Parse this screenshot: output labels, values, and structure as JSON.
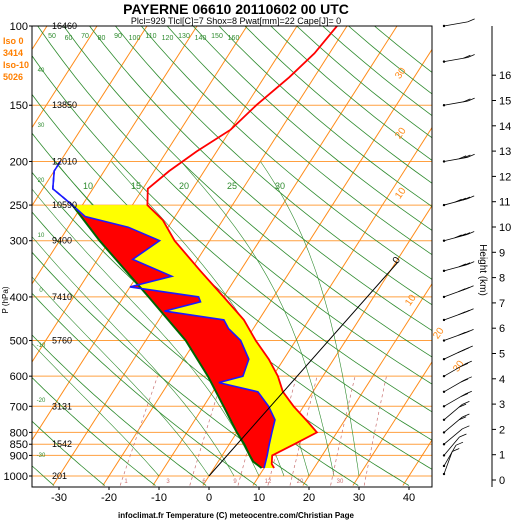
{
  "title": "PAYERNE 06610 20110602 00 UTC",
  "subtitle": "Plcl=929 Tlcl[C]=7 Shox=8 Pwat[mm]=22 Cape[J]= 0",
  "footer": "infoclimat.fr Temperature (C) meteocentre.com/Christian Page",
  "side_info": [
    {
      "text": "Iso 0",
      "color": "#ff7f00"
    },
    {
      "text": "3414",
      "color": "#ff7f00"
    },
    {
      "text": "Iso-10",
      "color": "#ff7f00"
    },
    {
      "text": "5026",
      "color": "#ff7f00"
    }
  ],
  "colors": {
    "isobar": "#ffa040",
    "isotherm": "#ff8c1a",
    "dry_adiabat": "#2e8b2e",
    "moist_adiabat": "#2e8b2e",
    "mixing_ratio": "#c87070",
    "temperature": "#ff0000",
    "dewpoint": "#1a1aff",
    "parcel": "#006400",
    "cape_fill": "#ff0000",
    "cin_fill": "#ffff00",
    "wind": "#000000"
  },
  "chart_data": {
    "type": "skew-t",
    "xlabel": "",
    "ylabel": "P (hPa)",
    "y2label": "Height (km)",
    "xlim": [
      -33,
      47
    ],
    "ylim": [
      1050,
      100
    ],
    "x_ticks": [
      -30,
      -20,
      -10,
      0,
      10,
      20,
      30,
      40
    ],
    "pressure_ticks": [
      100,
      150,
      200,
      250,
      300,
      400,
      500,
      600,
      700,
      800,
      850,
      900,
      1000
    ],
    "height_ticks": [
      0,
      1,
      2,
      3,
      4,
      5,
      6,
      7,
      8,
      9,
      10,
      11,
      12,
      13,
      14,
      15,
      16
    ],
    "geopotential": [
      {
        "p": 100,
        "h": "16460"
      },
      {
        "p": 150,
        "h": "13850"
      },
      {
        "p": 200,
        "h": "12010"
      },
      {
        "p": 250,
        "h": "10590"
      },
      {
        "p": 300,
        "h": "9400"
      },
      {
        "p": 400,
        "h": "7410"
      },
      {
        "p": 500,
        "h": "5760"
      },
      {
        "p": 700,
        "h": "3131"
      },
      {
        "p": 850,
        "h": "1542"
      },
      {
        "p": 1000,
        "h": "201"
      }
    ],
    "skewed_isotherm_labels": [
      "50",
      "60",
      "70",
      "80",
      "90",
      "100",
      "110",
      "120",
      "130",
      "140",
      "150",
      "160"
    ],
    "mixing_ratio_labels": [
      "1",
      "3",
      "6",
      "9",
      "12",
      "20",
      "30"
    ],
    "isotherm_labels_right": [
      "30",
      "20",
      "10",
      "0",
      "10",
      "20",
      "30"
    ],
    "dry_adiabat_labels": [
      "10",
      "15",
      "20",
      "25",
      "30"
    ],
    "left_theta_labels": [
      "40",
      "30",
      "20",
      "10",
      "0",
      "-10",
      "-20",
      "-30"
    ],
    "temperature": [
      {
        "p": 960,
        "t": 12.0
      },
      {
        "p": 940,
        "t": 11.0
      },
      {
        "p": 900,
        "t": 10.0
      },
      {
        "p": 850,
        "t": 13.0
      },
      {
        "p": 800,
        "t": 16.0
      },
      {
        "p": 760,
        "t": 13.0
      },
      {
        "p": 700,
        "t": 8.0
      },
      {
        "p": 650,
        "t": 4.0
      },
      {
        "p": 600,
        "t": 1.0
      },
      {
        "p": 550,
        "t": -3.0
      },
      {
        "p": 500,
        "t": -8.0
      },
      {
        "p": 450,
        "t": -13.0
      },
      {
        "p": 400,
        "t": -20.0
      },
      {
        "p": 350,
        "t": -28.0
      },
      {
        "p": 300,
        "t": -37.0
      },
      {
        "p": 270,
        "t": -42.0
      },
      {
        "p": 250,
        "t": -47.0
      },
      {
        "p": 230,
        "t": -49.0
      },
      {
        "p": 210,
        "t": -47.0
      },
      {
        "p": 190,
        "t": -44.0
      },
      {
        "p": 170,
        "t": -40.0
      },
      {
        "p": 150,
        "t": -38.0
      },
      {
        "p": 130,
        "t": -35.0
      },
      {
        "p": 115,
        "t": -33.0
      },
      {
        "p": 100,
        "t": -32.0
      }
    ],
    "dewpoint": [
      {
        "p": 960,
        "t": 10.0
      },
      {
        "p": 900,
        "t": 9.0
      },
      {
        "p": 850,
        "t": 8.0
      },
      {
        "p": 800,
        "t": 7.0
      },
      {
        "p": 750,
        "t": 6.0
      },
      {
        "p": 700,
        "t": 3.0
      },
      {
        "p": 650,
        "t": -1.0
      },
      {
        "p": 620,
        "t": -10.0
      },
      {
        "p": 600,
        "t": -6.0
      },
      {
        "p": 550,
        "t": -7.0
      },
      {
        "p": 500,
        "t": -11.0
      },
      {
        "p": 470,
        "t": -15.0
      },
      {
        "p": 450,
        "t": -17.0
      },
      {
        "p": 430,
        "t": -30.0
      },
      {
        "p": 410,
        "t": -24.0
      },
      {
        "p": 400,
        "t": -25.0
      },
      {
        "p": 380,
        "t": -40.0
      },
      {
        "p": 360,
        "t": -33.0
      },
      {
        "p": 330,
        "t": -43.0
      },
      {
        "p": 300,
        "t": -40.0
      },
      {
        "p": 280,
        "t": -48.0
      },
      {
        "p": 265,
        "t": -58.0
      },
      {
        "p": 250,
        "t": -62.0
      },
      {
        "p": 230,
        "t": -68.0
      },
      {
        "p": 210,
        "t": -70.0
      },
      {
        "p": 200,
        "t": -70.0
      }
    ],
    "parcel": [
      {
        "p": 960,
        "t": 9.5
      },
      {
        "p": 929,
        "t": 7.0
      },
      {
        "p": 900,
        "t": 5.5
      },
      {
        "p": 850,
        "t": 3.0
      },
      {
        "p": 800,
        "t": 0.0
      },
      {
        "p": 700,
        "t": -6.0
      },
      {
        "p": 600,
        "t": -13.0
      },
      {
        "p": 500,
        "t": -22.0
      },
      {
        "p": 400,
        "t": -35.0
      },
      {
        "p": 300,
        "t": -52.0
      },
      {
        "p": 250,
        "t": -62.0
      }
    ],
    "wind": [
      {
        "p": 990,
        "dir": 200,
        "kt": 5
      },
      {
        "p": 950,
        "dir": 210,
        "kt": 5
      },
      {
        "p": 900,
        "dir": 220,
        "kt": 10
      },
      {
        "p": 850,
        "dir": 230,
        "kt": 10
      },
      {
        "p": 800,
        "dir": 230,
        "kt": 15
      },
      {
        "p": 750,
        "dir": 230,
        "kt": 15
      },
      {
        "p": 700,
        "dir": 240,
        "kt": 20
      },
      {
        "p": 650,
        "dir": 240,
        "kt": 20
      },
      {
        "p": 600,
        "dir": 240,
        "kt": 20
      },
      {
        "p": 550,
        "dir": 245,
        "kt": 25
      },
      {
        "p": 500,
        "dir": 250,
        "kt": 25
      },
      {
        "p": 450,
        "dir": 250,
        "kt": 25
      },
      {
        "p": 400,
        "dir": 250,
        "kt": 30
      },
      {
        "p": 350,
        "dir": 255,
        "kt": 30
      },
      {
        "p": 300,
        "dir": 255,
        "kt": 35
      },
      {
        "p": 250,
        "dir": 255,
        "kt": 35
      },
      {
        "p": 200,
        "dir": 260,
        "kt": 25
      },
      {
        "p": 150,
        "dir": 260,
        "kt": 20
      },
      {
        "p": 120,
        "dir": 260,
        "kt": 15
      },
      {
        "p": 100,
        "dir": 260,
        "kt": 10
      }
    ],
    "hodograph_line": [
      {
        "p": 1000,
        "t": 0
      },
      {
        "p": 180,
        "t": 38
      }
    ],
    "grid": true
  }
}
